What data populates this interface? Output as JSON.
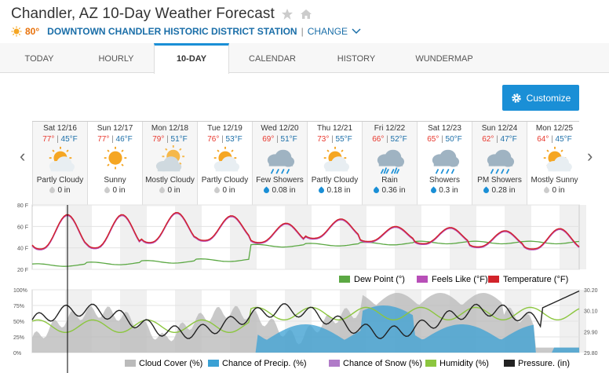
{
  "header": {
    "title": "Chandler, AZ 10-Day Weather Forecast",
    "current_temp": "80°",
    "station": "DOWNTOWN CHANDLER HISTORIC DISTRICT STATION",
    "separator": "|",
    "change_label": "CHANGE"
  },
  "tabs": [
    {
      "label": "TODAY"
    },
    {
      "label": "HOURLY"
    },
    {
      "label": "10-DAY",
      "active": true
    },
    {
      "label": "CALENDAR"
    },
    {
      "label": "HISTORY"
    },
    {
      "label": "WUNDERMAP"
    }
  ],
  "customize_label": "Customize",
  "days": [
    {
      "date": "Sat 12/16",
      "hi": "77°",
      "lo": "45°F",
      "cond": "Partly Cloudy",
      "icon": "partly-cloudy-icon",
      "precip": "0 in"
    },
    {
      "date": "Sun 12/17",
      "hi": "77°",
      "lo": "46°F",
      "cond": "Sunny",
      "icon": "sunny-icon",
      "precip": "0 in"
    },
    {
      "date": "Mon 12/18",
      "hi": "79°",
      "lo": "51°F",
      "cond": "Mostly Cloudy",
      "icon": "mostly-cloudy-icon",
      "precip": "0 in"
    },
    {
      "date": "Tue 12/19",
      "hi": "76°",
      "lo": "53°F",
      "cond": "Partly Cloudy",
      "icon": "partly-cloudy-icon",
      "precip": "0 in"
    },
    {
      "date": "Wed 12/20",
      "hi": "69°",
      "lo": "51°F",
      "cond": "Few Showers",
      "icon": "showers-icon",
      "precip": "0.08 in"
    },
    {
      "date": "Thu 12/21",
      "hi": "73°",
      "lo": "55°F",
      "cond": "Partly Cloudy",
      "icon": "partly-cloudy-icon",
      "precip": "0.18 in"
    },
    {
      "date": "Fri 12/22",
      "hi": "66°",
      "lo": "52°F",
      "cond": "Rain",
      "icon": "rain-icon",
      "precip": "0.36 in"
    },
    {
      "date": "Sat 12/23",
      "hi": "65°",
      "lo": "50°F",
      "cond": "Showers",
      "icon": "showers-icon",
      "precip": "0.3 in"
    },
    {
      "date": "Sun 12/24",
      "hi": "62°",
      "lo": "47°F",
      "cond": "PM Showers",
      "icon": "showers-icon",
      "precip": "0.28 in"
    },
    {
      "date": "Mon 12/25",
      "hi": "64°",
      "lo": "45°F",
      "cond": "Mostly Sunny",
      "icon": "mostly-sunny-icon",
      "precip": "0 in"
    }
  ],
  "chart_data": [
    {
      "type": "line",
      "y_ticks": [
        "80 F",
        "60 F",
        "40 F",
        "20 F"
      ],
      "ylim": [
        20,
        80
      ],
      "legend_placement": "bottom-right",
      "series": [
        {
          "name": "Dew Point (°)",
          "color": "#5ba843"
        },
        {
          "name": "Feels Like (°F)",
          "color": "#b84fb8"
        },
        {
          "name": "Temperature (°F)",
          "color": "#d2232a"
        }
      ]
    },
    {
      "type": "area",
      "y_ticks_left": [
        "100%",
        "75%",
        "50%",
        "25%",
        "0%"
      ],
      "y_ticks_right": [
        "30.20",
        "30.10",
        "29.90",
        "29.80"
      ],
      "legend_placement": "bottom-right",
      "series": [
        {
          "name": "Cloud Cover (%)",
          "color": "#bbbbbb"
        },
        {
          "name": "Chance of Precip. (%)",
          "color": "#3aa0d4"
        },
        {
          "name": "Chance of Snow (%)",
          "color": "#b07bc8"
        },
        {
          "name": "Humidity (%)",
          "color": "#8cc63f"
        },
        {
          "name": "Pressure. (in)",
          "color": "#222222"
        }
      ]
    }
  ]
}
